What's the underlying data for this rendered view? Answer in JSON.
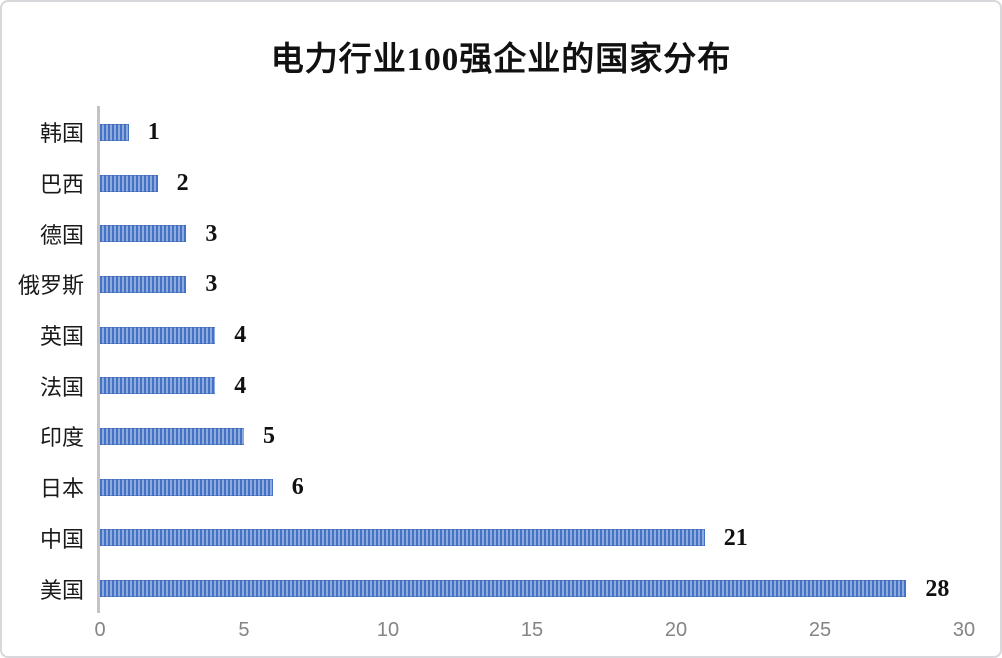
{
  "title": "电力行业100强企业的国家分布",
  "colors": {
    "bar_dark": "#4472c4",
    "bar_light": "#8faadc",
    "axis_line": "#c3c3c6",
    "tick_text": "#848488",
    "label_text": "#1a1a1a",
    "frame_border": "#d8d8dc",
    "background": "#ffffff"
  },
  "chart_data": {
    "type": "bar",
    "orientation": "horizontal",
    "title": "电力行业100强企业的国家分布",
    "categories": [
      "韩国",
      "巴西",
      "德国",
      "俄罗斯",
      "英国",
      "法国",
      "印度",
      "日本",
      "中国",
      "美国"
    ],
    "values": [
      1,
      2,
      3,
      3,
      4,
      4,
      5,
      6,
      21,
      28
    ],
    "category_order": "top-to-bottom",
    "data_labels": [
      "1",
      "2",
      "3",
      "3",
      "4",
      "4",
      "5",
      "6",
      "21",
      "28"
    ],
    "xlabel": "",
    "ylabel": "",
    "xlim": [
      0,
      30
    ],
    "x_ticks": [
      "0",
      "5",
      "10",
      "15",
      "20",
      "25",
      "30"
    ],
    "x_tick_values": [
      0,
      5,
      10,
      15,
      20,
      25,
      30
    ],
    "grid": false,
    "legend": false,
    "bar_fill_style": "vertical-stripe-hatch"
  }
}
